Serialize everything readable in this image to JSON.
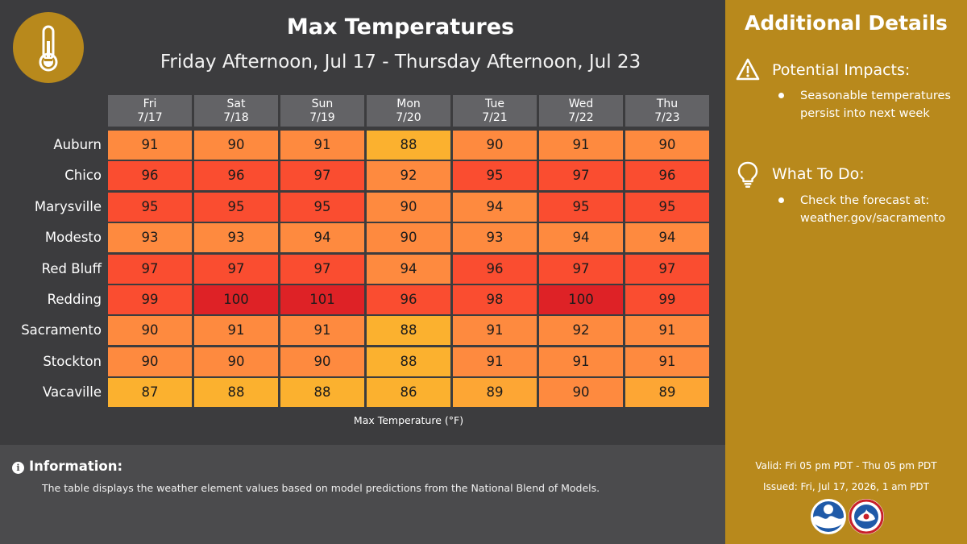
{
  "header": {
    "title": "Max Temperatures",
    "subtitle": "Friday Afternoon, Jul 17 - Thursday Afternoon, Jul 23",
    "icon": "thermometer-icon"
  },
  "chart_data": {
    "type": "heatmap",
    "title": "Max Temperatures",
    "subtitle": "Friday Afternoon, Jul 17 - Thursday Afternoon, Jul 23",
    "xlabel": "Max Temperature (°F)",
    "columns": [
      {
        "day": "Fri",
        "date": "7/17"
      },
      {
        "day": "Sat",
        "date": "7/18"
      },
      {
        "day": "Sun",
        "date": "7/19"
      },
      {
        "day": "Mon",
        "date": "7/20"
      },
      {
        "day": "Tue",
        "date": "7/21"
      },
      {
        "day": "Wed",
        "date": "7/22"
      },
      {
        "day": "Thu",
        "date": "7/23"
      }
    ],
    "rows": [
      {
        "city": "Auburn",
        "values": [
          91,
          90,
          91,
          88,
          90,
          91,
          90
        ]
      },
      {
        "city": "Chico",
        "values": [
          96,
          96,
          97,
          92,
          95,
          97,
          96
        ]
      },
      {
        "city": "Marysville",
        "values": [
          95,
          95,
          95,
          90,
          94,
          95,
          95
        ]
      },
      {
        "city": "Modesto",
        "values": [
          93,
          93,
          94,
          90,
          93,
          94,
          94
        ]
      },
      {
        "city": "Red Bluff",
        "values": [
          97,
          97,
          97,
          94,
          96,
          97,
          97
        ]
      },
      {
        "city": "Redding",
        "values": [
          99,
          100,
          101,
          96,
          98,
          100,
          99
        ]
      },
      {
        "city": "Sacramento",
        "values": [
          90,
          91,
          91,
          88,
          91,
          92,
          91
        ]
      },
      {
        "city": "Stockton",
        "values": [
          90,
          90,
          90,
          88,
          91,
          91,
          91
        ]
      },
      {
        "city": "Vacaville",
        "values": [
          87,
          88,
          88,
          86,
          89,
          90,
          89
        ]
      }
    ],
    "color_scale": [
      {
        "min": 80,
        "max": 88,
        "color": "#fbb12f"
      },
      {
        "min": 89,
        "max": 89,
        "color": "#fda634"
      },
      {
        "min": 90,
        "max": 94,
        "color": "#fe8a3f"
      },
      {
        "min": 95,
        "max": 99,
        "color": "#fa4d30"
      },
      {
        "min": 100,
        "max": 110,
        "color": "#de2226"
      }
    ]
  },
  "info": {
    "title": "Information:",
    "text": "The table displays the weather element values based on model predictions from the National Blend of Models."
  },
  "sidebar": {
    "title": "Additional Details",
    "impacts_heading": "Potential Impacts:",
    "impacts_text": "Seasonable temperatures persist into next week",
    "todo_heading": "What To Do:",
    "todo_text": "Check the forecast at: weather.gov/sacramento",
    "valid": "Valid: Fri 05 pm PDT - Thu 05 pm PDT",
    "issued": "Issued: Fri, Jul 17, 2026, 1 am PDT"
  },
  "colors": {
    "panel_bg": "#3c3c3e",
    "sidebar_bg": "#b8891c",
    "header_cell_bg": "#636366"
  }
}
